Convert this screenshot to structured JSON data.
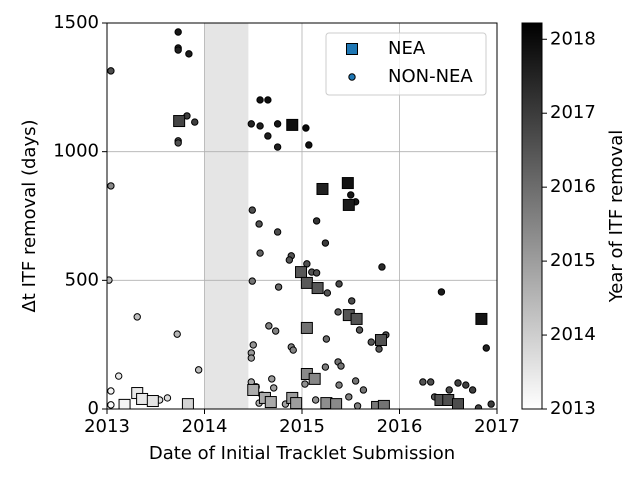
{
  "chart_data": {
    "type": "scatter",
    "xlabel": "Date of Initial Tracklet Submission",
    "ylabel": "Δt ITF removal (days)",
    "xlim": [
      2013,
      2017
    ],
    "xticks": [
      2013,
      2014,
      2015,
      2016,
      2017
    ],
    "ylim": [
      0,
      1500
    ],
    "yticks": [
      0,
      500,
      1000,
      1500
    ],
    "grid": true,
    "legend": "upper right",
    "shaded_span": [
      2014,
      2014.45
    ],
    "colorbar": {
      "label": "Year of ITF removal",
      "lim": [
        2013,
        2018.22
      ],
      "ticks": [
        2013,
        2014,
        2015,
        2016,
        2017,
        2018
      ],
      "colormap": [
        "#ffffff",
        "#000000"
      ]
    },
    "series": [
      {
        "name": "NON-NEA",
        "marker": "circle",
        "color": "#1f77b4",
        "x": [
          2013.04,
          2013.04,
          2013.73,
          2013.73,
          2013.73,
          2013.84,
          2013.73,
          2013.73,
          2013.82,
          2013.9,
          2013.31,
          2013.72,
          2013.94,
          2013.12,
          2013.04,
          2013.04,
          2013.54,
          2013.62,
          2014.48,
          2014.57,
          2014.57,
          2014.65,
          2014.65,
          2014.75,
          2014.75,
          2015.04,
          2015.07,
          2014.49,
          2014.56,
          2014.75,
          2015.15,
          2015.24,
          2014.57,
          2014.89,
          2014.87,
          2015.5,
          2015.55,
          2015.82,
          2014.49,
          2014.76,
          2015.05,
          2015.1,
          2015.15,
          2015.26,
          2015.38,
          2015.51,
          2014.66,
          2014.73,
          2014.89,
          2014.91,
          2014.5,
          2014.48,
          2014.48,
          2015.25,
          2015.37,
          2015.59,
          2015.86,
          2015.71,
          2015.79,
          2015.37,
          2015.4,
          2015.24,
          2015.03,
          2015.38,
          2015.55,
          2015.63,
          2014.48,
          2014.53,
          2014.69,
          2014.71,
          2014.59,
          2014.56,
          2014.83,
          2015.14,
          2015.48,
          2015.57,
          2016.43,
          2016.89,
          2016.24,
          2016.32,
          2016.51,
          2016.6,
          2016.68,
          2016.75,
          2016.36,
          2016.94,
          2016.81,
          2013.02
        ],
        "values": [
          1314,
          867,
          1465,
          1403,
          1395,
          1380,
          1042,
          1034,
          1139,
          1115,
          358,
          291,
          152,
          128,
          70,
          16,
          35,
          43,
          1108,
          1201,
          1100,
          1201,
          1061,
          1108,
          1018,
          1092,
          1026,
          773,
          719,
          688,
          731,
          645,
          606,
          595,
          579,
          832,
          805,
          552,
          497,
          474,
          564,
          532,
          529,
          451,
          486,
          420,
          323,
          303,
          241,
          229,
          249,
          218,
          198,
          272,
          377,
          307,
          288,
          260,
          233,
          183,
          167,
          163,
          97,
          93,
          109,
          74,
          105,
          86,
          117,
          82,
          54,
          23,
          19,
          35,
          47,
          12,
          455,
          237,
          105,
          105,
          74,
          101,
          93,
          74,
          47,
          19,
          4,
          501
        ]
      },
      {
        "name": "NEA",
        "marker": "square",
        "color": "#1f77b4",
        "x": [
          2013.74,
          2014.9,
          2015.21,
          2015.47,
          2015.48,
          2014.99,
          2015.05,
          2015.16,
          2015.05,
          2015.48,
          2015.56,
          2015.81,
          2016.84,
          2015.05,
          2015.13,
          2014.9,
          2014.94,
          2014.5,
          2014.62,
          2014.68,
          2015.25,
          2015.35,
          2015.77,
          2015.84,
          2013.31,
          2013.36,
          2013.47,
          2013.18,
          2013.83,
          2016.42,
          2016.5,
          2016.6
        ],
        "values": [
          1119,
          1104,
          855,
          878,
          793,
          532,
          490,
          470,
          315,
          365,
          350,
          268,
          350,
          136,
          117,
          43,
          23,
          74,
          43,
          27,
          23,
          19,
          8,
          12,
          62,
          39,
          31,
          16,
          19,
          35,
          35,
          19
        ]
      }
    ]
  }
}
